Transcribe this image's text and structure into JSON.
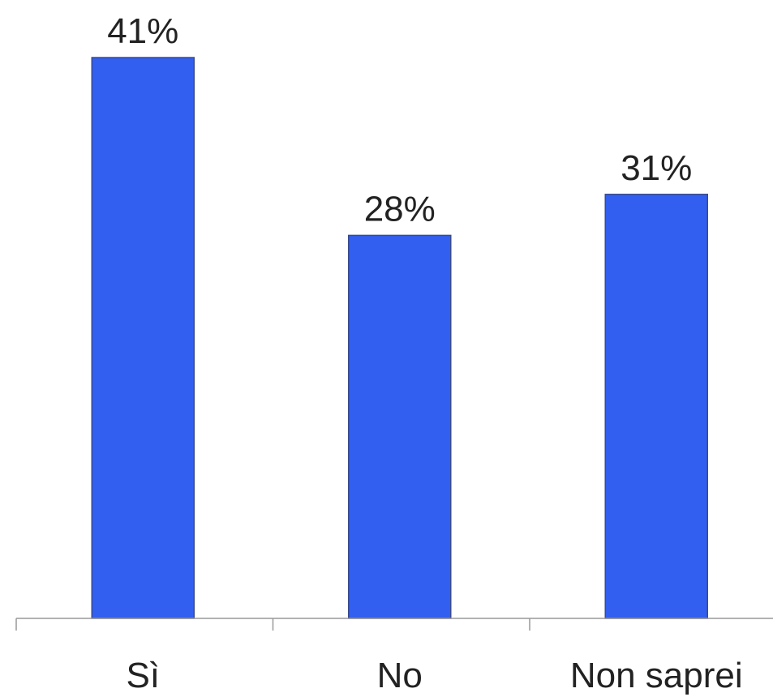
{
  "chart_data": {
    "type": "bar",
    "title": "",
    "xlabel": "",
    "ylabel": "",
    "categories": [
      "Sì",
      "No",
      "Non saprei"
    ],
    "values": [
      41,
      28,
      31
    ],
    "value_labels": [
      "41%",
      "28%",
      "31%"
    ],
    "unit": "%",
    "ylim": [
      0,
      45
    ],
    "grid": false,
    "legend": "none",
    "colors": {
      "bar": "#325ff0",
      "bar_edge": "#3a4a8a",
      "axis": "#999999",
      "text": "#222222"
    }
  }
}
